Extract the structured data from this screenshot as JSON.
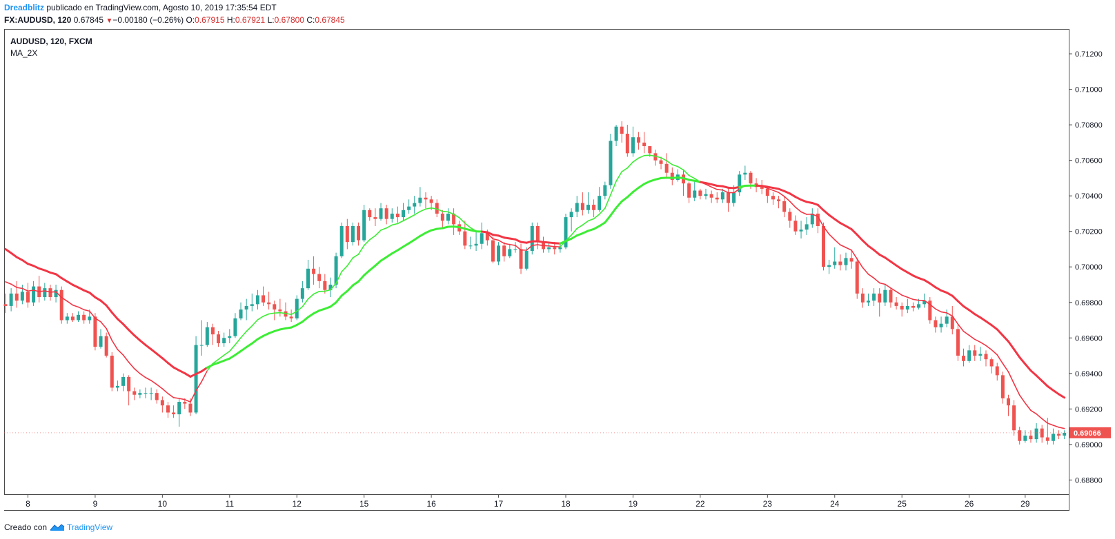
{
  "header": {
    "author": "Dreadblitz",
    "published_text": " publicado en TradingView.com, Agosto 10, 2019 17:35:54 EDT",
    "symbol": "FX:AUDUSD, 120",
    "last": "0.67845",
    "change": "−0.00180 (−0.26%)",
    "o_label": "O:",
    "o_value": "0.67915",
    "h_label": "H:",
    "h_value": "0.67921",
    "l_label": "L:",
    "l_value": "0.67800",
    "c_label": "C:",
    "c_value": "0.67845"
  },
  "legend": {
    "series_name": "AUDUSD, 120, FXCM",
    "indicator": "MA_2X"
  },
  "footer": {
    "created_with": "Creado con",
    "brand": "TradingView"
  },
  "colors": {
    "up": "#26a69a",
    "down": "#ef5350",
    "ma_red": "#f23645",
    "ma_green": "#3ded35",
    "price_tag": "#ef5350"
  },
  "chart_data": {
    "type": "candlestick",
    "y_ticks": [
      "0.71200",
      "0.71000",
      "0.70800",
      "0.70600",
      "0.70400",
      "0.70200",
      "0.70000",
      "0.69800",
      "0.69600",
      "0.69400",
      "0.69200",
      "0.69000",
      "0.68800"
    ],
    "ylim": [
      0.6872,
      0.7134
    ],
    "x_tick_labels": [
      {
        "label": "8",
        "i": 4
      },
      {
        "label": "9",
        "i": 16
      },
      {
        "label": "10",
        "i": 28
      },
      {
        "label": "11",
        "i": 40
      },
      {
        "label": "12",
        "i": 52
      },
      {
        "label": "15",
        "i": 64
      },
      {
        "label": "16",
        "i": 76
      },
      {
        "label": "17",
        "i": 88
      },
      {
        "label": "18",
        "i": 100
      },
      {
        "label": "19",
        "i": 112
      },
      {
        "label": "22",
        "i": 124
      },
      {
        "label": "23",
        "i": 136
      },
      {
        "label": "24",
        "i": 148
      },
      {
        "label": "25",
        "i": 160
      },
      {
        "label": "26",
        "i": 172
      },
      {
        "label": "29",
        "i": 182
      }
    ],
    "last_price": "0.69066",
    "last_price_value": 0.69066,
    "ohlc": [],
    "ma_fast": [],
    "ma_slow": []
  }
}
